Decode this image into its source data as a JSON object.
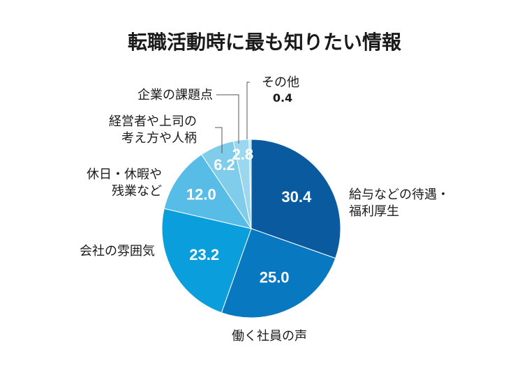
{
  "chart_data": {
    "type": "pie",
    "title": "転職活動時に最も知りたい情報",
    "slices": [
      {
        "label_lines": [
          "給与などの待遇・",
          "福利厚生"
        ],
        "value": 30.4,
        "value_label": "30.4",
        "color": "#0a5aa0"
      },
      {
        "label_lines": [
          "働く社員の声"
        ],
        "value": 25.0,
        "value_label": "25.0",
        "color": "#0878c0"
      },
      {
        "label_lines": [
          "会社の雰囲気"
        ],
        "value": 23.2,
        "value_label": "23.2",
        "color": "#0a9fdc"
      },
      {
        "label_lines": [
          "休日・休暇や",
          "残業など"
        ],
        "value": 12.0,
        "value_label": "12.0",
        "color": "#57bde6"
      },
      {
        "label_lines": [
          "経営者や上司の",
          "考え方や人柄"
        ],
        "value": 6.2,
        "value_label": "6.2",
        "color": "#7fcdeb"
      },
      {
        "label_lines": [
          "企業の課題点"
        ],
        "value": 2.8,
        "value_label": "2.8",
        "color": "#9bd8f0"
      },
      {
        "label_lines": [
          "その他"
        ],
        "value": 0.4,
        "value_label": "0.4",
        "color": "#b8e4f5"
      }
    ]
  }
}
